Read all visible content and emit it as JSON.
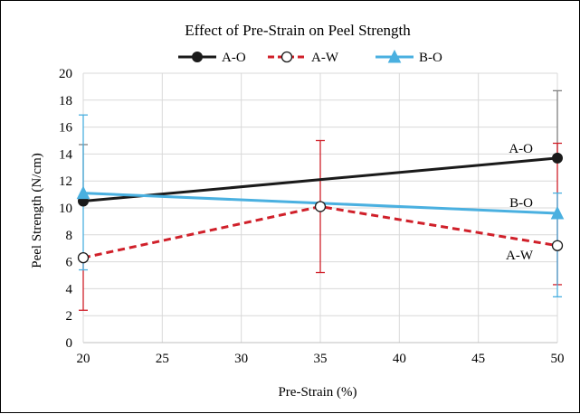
{
  "chart_data": {
    "type": "line",
    "title": "Effect of Pre-Strain on Peel Strength",
    "xlabel": "Pre-Strain (%)",
    "ylabel": "Peel Strength (N/cm)",
    "xlim": [
      20,
      50
    ],
    "ylim": [
      0,
      20
    ],
    "xticks": [
      20,
      25,
      30,
      35,
      40,
      45,
      50
    ],
    "yticks": [
      0,
      2,
      4,
      6,
      8,
      10,
      12,
      14,
      16,
      18,
      20
    ],
    "grid": true,
    "legend_position": "top-center",
    "series": [
      {
        "name": "A-O",
        "color": "#1a1a1a",
        "line_style": "solid",
        "marker": "filled-circle",
        "x": [
          20,
          50
        ],
        "y": [
          10.5,
          13.7
        ],
        "error_low": [
          10.5,
          13.7
        ],
        "error_high": [
          14.7,
          18.7
        ],
        "end_label": "A-O"
      },
      {
        "name": "A-W",
        "color": "#d0202a",
        "line_style": "dashed",
        "marker": "open-circle",
        "x": [
          20,
          35,
          50
        ],
        "y": [
          6.3,
          10.1,
          7.2
        ],
        "error_low": [
          2.4,
          5.2,
          4.3
        ],
        "error_high": [
          6.3,
          15.0,
          14.8
        ],
        "end_label": "A-W"
      },
      {
        "name": "B-O",
        "color": "#4ab0e0",
        "line_style": "solid",
        "marker": "filled-triangle",
        "x": [
          20,
          50
        ],
        "y": [
          11.1,
          9.6
        ],
        "error_low": [
          5.4,
          3.4
        ],
        "error_high": [
          16.9,
          11.1
        ],
        "end_label": "B-O"
      }
    ]
  }
}
